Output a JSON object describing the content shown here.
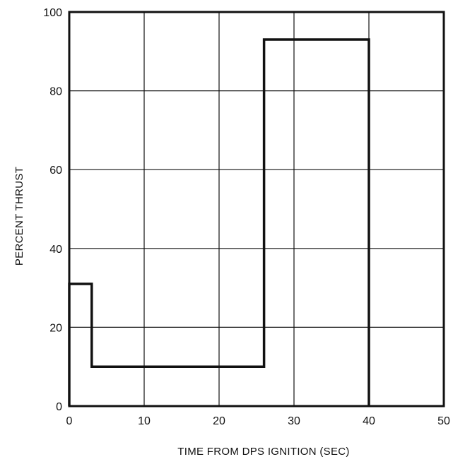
{
  "chart_data": {
    "type": "line",
    "title": "",
    "xlabel": "TIME FROM DPS IGNITION (SEC)",
    "ylabel": "PERCENT THRUST",
    "xlim": [
      0,
      50
    ],
    "ylim": [
      0,
      100
    ],
    "xticks": [
      0,
      10,
      20,
      30,
      40,
      50
    ],
    "yticks": [
      0,
      20,
      40,
      60,
      80,
      100
    ],
    "grid": true,
    "legend": "none",
    "line_color": "#111111",
    "series": [
      {
        "step": "post",
        "x": [
          0,
          3,
          26,
          40
        ],
        "y": [
          31,
          10,
          93,
          0
        ]
      }
    ]
  }
}
